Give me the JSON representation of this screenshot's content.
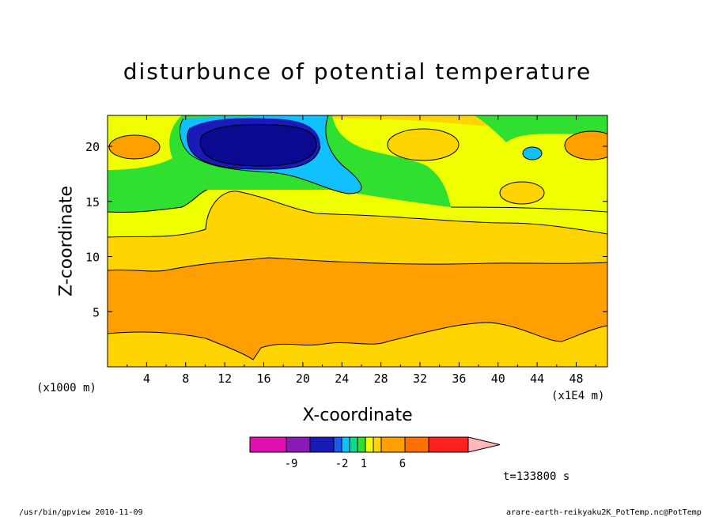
{
  "chart_data": {
    "type": "heatmap",
    "title": "disturbunce of potential temperature",
    "xlabel": "X-coordinate",
    "ylabel": "Z-coordinate",
    "x_unit_left": "(x1000 m)",
    "x_unit_right": "(x1E4 m)",
    "xlim": [
      0,
      51.2
    ],
    "ylim": [
      0,
      22.8
    ],
    "x_ticks": [
      "4",
      "8",
      "12",
      "16",
      "20",
      "24",
      "28",
      "32",
      "36",
      "40",
      "44",
      "48"
    ],
    "y_ticks": [
      "5",
      "10",
      "15",
      "20"
    ],
    "colorbar": {
      "colors": [
        "#e010b0",
        "#8a1ab8",
        "#1a1ab8",
        "#1a5af0",
        "#10c0ff",
        "#10d890",
        "#30e030",
        "#f0ff00",
        "#ffd400",
        "#ffa000",
        "#ff7000",
        "#ff2020",
        "#ff8080",
        "#ffb8b8"
      ],
      "labels": [
        "-9",
        "-2",
        "1",
        "6"
      ]
    },
    "time_label": "t=133800 s",
    "footer_left": "/usr/bin/gpview  2010-11-09",
    "footer_right": "arare-earth-reikyaku2K_PotTemp.nc@PotTemp"
  }
}
